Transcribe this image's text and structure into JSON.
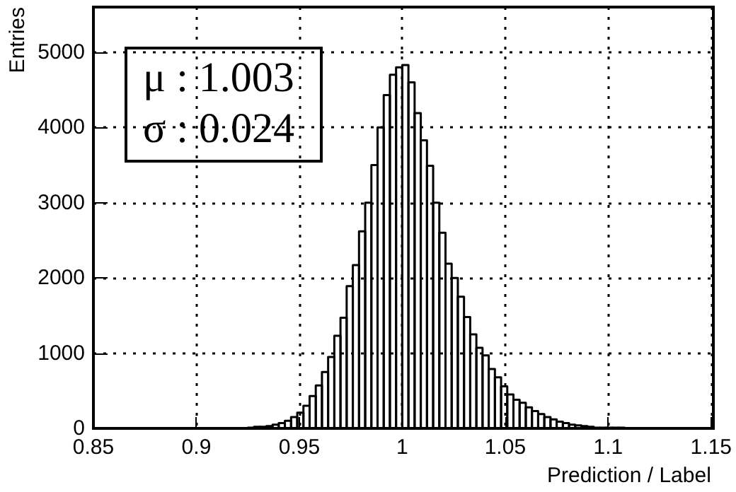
{
  "chart_data": {
    "type": "histogram",
    "xlabel": "Prediction / Label",
    "ylabel": "Entries",
    "annotations": [
      "μ : 1.003",
      "σ : 0.024"
    ],
    "color": "#000000",
    "bins": [
      0.925,
      0.928,
      0.931,
      0.934,
      0.937,
      0.94,
      0.943,
      0.946,
      0.949,
      0.952,
      0.955,
      0.958,
      0.961,
      0.964,
      0.967,
      0.97,
      0.973,
      0.976,
      0.979,
      0.982,
      0.985,
      0.988,
      0.991,
      0.994,
      0.997,
      1.0,
      1.003,
      1.006,
      1.009,
      1.012,
      1.015,
      1.018,
      1.021,
      1.024,
      1.027,
      1.03,
      1.033,
      1.036,
      1.039,
      1.042,
      1.045,
      1.048,
      1.051,
      1.054,
      1.057,
      1.06,
      1.063,
      1.066,
      1.069,
      1.072,
      1.075,
      1.078,
      1.081,
      1.084,
      1.087,
      1.09,
      1.093,
      1.096,
      1.099,
      1.102,
      1.105,
      1.108
    ],
    "values": [
      10,
      20,
      20,
      30,
      50,
      70,
      100,
      150,
      210,
      300,
      430,
      570,
      750,
      950,
      1230,
      1470,
      1890,
      2170,
      2620,
      3000,
      3500,
      4000,
      4430,
      4700,
      4800,
      4830,
      4600,
      4190,
      3830,
      3490,
      3000,
      2600,
      2190,
      2000,
      1750,
      1480,
      1250,
      1070,
      970,
      790,
      680,
      560,
      450,
      380,
      340,
      280,
      230,
      190,
      150,
      120,
      90,
      70,
      50,
      40,
      30,
      20,
      10,
      10,
      10,
      10,
      10
    ],
    "xlim": [
      0.85,
      1.15
    ],
    "xticks": [
      0.85,
      0.9,
      0.95,
      1,
      1.05,
      1.1,
      1.15
    ],
    "ylim": [
      0,
      5600
    ],
    "yticks": [
      0,
      1000,
      2000,
      3000,
      4000,
      5000
    ],
    "grid": true,
    "line_style": "solid"
  }
}
